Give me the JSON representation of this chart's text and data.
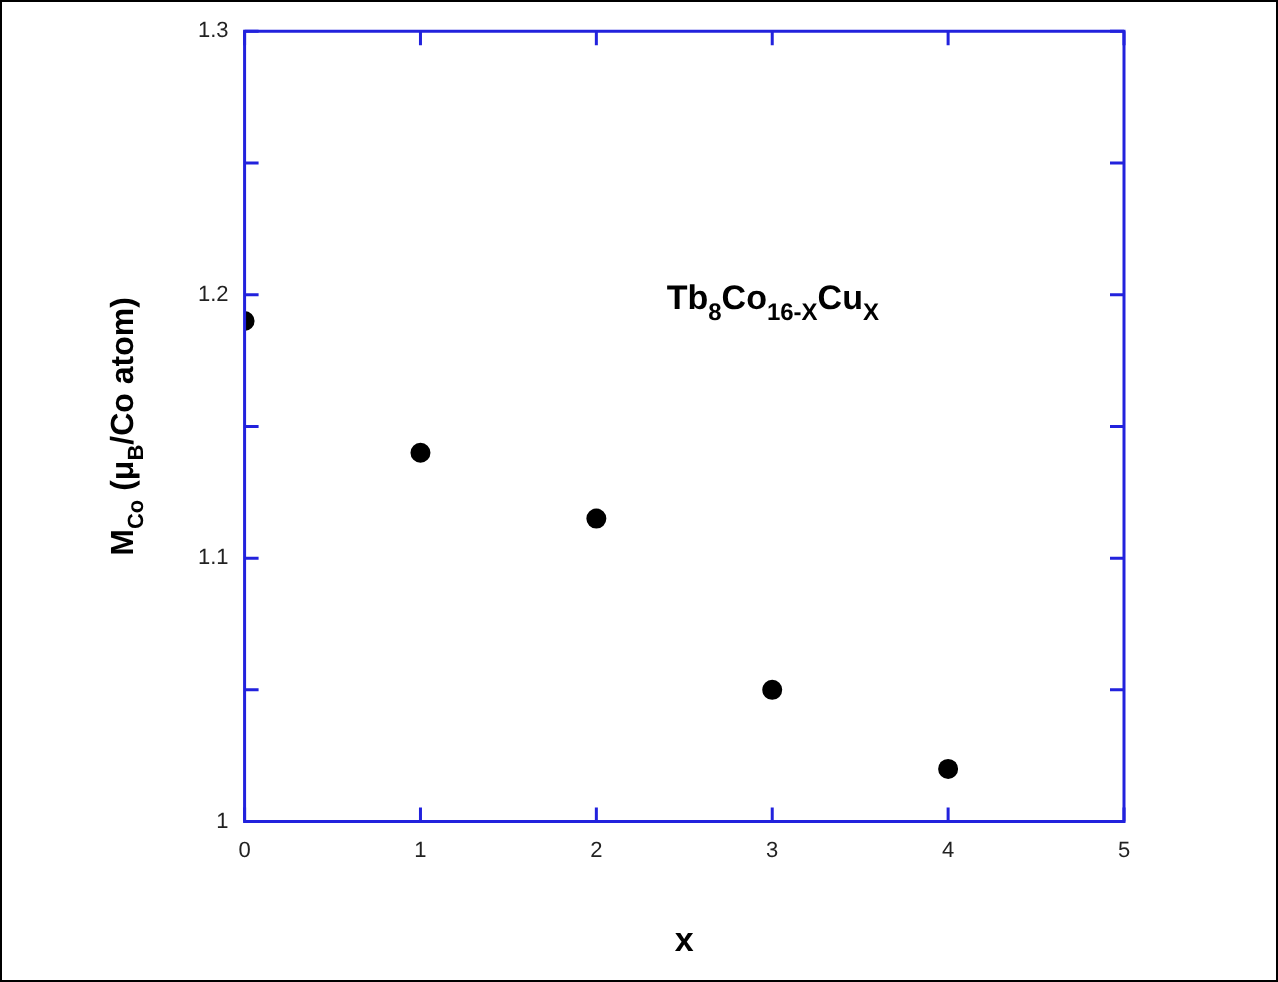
{
  "chart_data": {
    "type": "scatter",
    "xlabel": "x",
    "ylabel": "M$_{Co}$ (μ$_{B}$/Co atom)",
    "annotations": [
      "Tb$_{8}$Co$_{16-X}$Cu$_{X}$"
    ],
    "x": [
      0,
      1,
      2,
      3,
      4
    ],
    "series": [
      {
        "color": "#000000",
        "values": [
          1.19,
          1.14,
          1.115,
          1.05,
          1.02
        ]
      }
    ],
    "xlim": [
      0,
      5
    ],
    "xticks": [
      0,
      1,
      2,
      3,
      4,
      5
    ],
    "ylim": [
      1,
      1.3
    ],
    "yticks": [
      1,
      {
        "value": 1.05,
        "label": null
      },
      1.1,
      {
        "value": 1.15,
        "label": null
      },
      1.2,
      {
        "value": 1.25,
        "label": null
      },
      1.3
    ],
    "marker": "circle",
    "grid": false,
    "legend": false
  }
}
